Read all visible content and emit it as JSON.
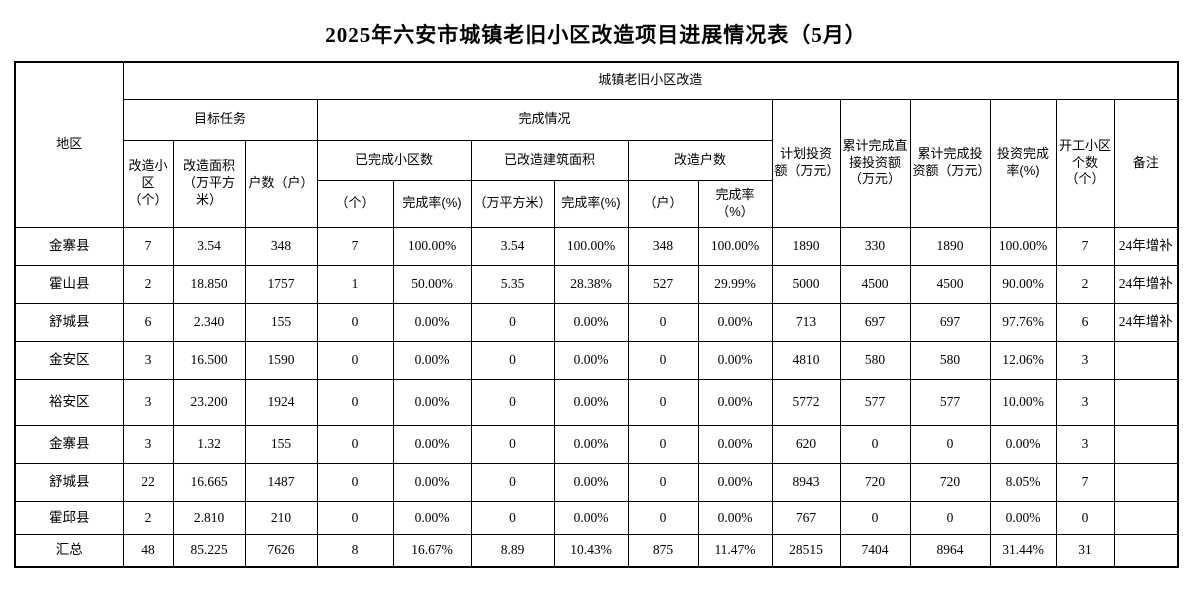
{
  "title": "2025年六安市城镇老旧小区改造项目进展情况表（5月）",
  "table": {
    "header": {
      "region": "地区",
      "group_top": "城镇老旧小区改造",
      "target_tasks": "目标任务",
      "completion_status": "完成情况",
      "col_renovate_districts": "改造小区（个）",
      "col_renovate_area": "改造面积（万平方米）",
      "col_households": "户数（户）",
      "grp_completed_districts": "已完成小区数",
      "grp_completed_area": "已改造建筑面积",
      "grp_renovated_households": "改造户数",
      "sub_count_unit": "（个）",
      "sub_count_rate": "完成率(%)",
      "sub_area_unit": "（万平方米）",
      "sub_area_rate": "完成率(%)",
      "sub_household_unit": "（户）",
      "sub_household_rate": "完成率（%）",
      "col_planned_investment": "计划投资额（万元）",
      "col_cumulative_direct_investment": "累计完成直接投资额（万元）",
      "col_cumulative_investment": "累计完成投资额（万元）",
      "col_investment_rate": "投资完成率(%)",
      "col_started_districts": "开工小区个数（个）",
      "col_remark": "备注"
    },
    "rows": [
      [
        "金寨县",
        "7",
        "3.54",
        "348",
        "7",
        "100.00%",
        "3.54",
        "100.00%",
        "348",
        "100.00%",
        "1890",
        "330",
        "1890",
        "100.00%",
        "7",
        "24年增补"
      ],
      [
        "霍山县",
        "2",
        "18.850",
        "1757",
        "1",
        "50.00%",
        "5.35",
        "28.38%",
        "527",
        "29.99%",
        "5000",
        "4500",
        "4500",
        "90.00%",
        "2",
        "24年增补"
      ],
      [
        "舒城县",
        "6",
        "2.340",
        "155",
        "0",
        "0.00%",
        "0",
        "0.00%",
        "0",
        "0.00%",
        "713",
        "697",
        "697",
        "97.76%",
        "6",
        "24年增补"
      ],
      [
        "金安区",
        "3",
        "16.500",
        "1590",
        "0",
        "0.00%",
        "0",
        "0.00%",
        "0",
        "0.00%",
        "4810",
        "580",
        "580",
        "12.06%",
        "3",
        ""
      ],
      [
        "裕安区",
        "3",
        "23.200",
        "1924",
        "0",
        "0.00%",
        "0",
        "0.00%",
        "0",
        "0.00%",
        "5772",
        "577",
        "577",
        "10.00%",
        "3",
        ""
      ],
      [
        "金寨县",
        "3",
        "1.32",
        "155",
        "0",
        "0.00%",
        "0",
        "0.00%",
        "0",
        "0.00%",
        "620",
        "0",
        "0",
        "0.00%",
        "3",
        ""
      ],
      [
        "舒城县",
        "22",
        "16.665",
        "1487",
        "0",
        "0.00%",
        "0",
        "0.00%",
        "0",
        "0.00%",
        "8943",
        "720",
        "720",
        "8.05%",
        "7",
        ""
      ],
      [
        "霍邱县",
        "2",
        "2.810",
        "210",
        "0",
        "0.00%",
        "0",
        "0.00%",
        "0",
        "0.00%",
        "767",
        "0",
        "0",
        "0.00%",
        "0",
        ""
      ],
      [
        "汇总",
        "48",
        "85.225",
        "7626",
        "8",
        "16.67%",
        "8.89",
        "10.43%",
        "875",
        "11.47%",
        "28515",
        "7404",
        "8964",
        "31.44%",
        "31",
        ""
      ]
    ]
  }
}
